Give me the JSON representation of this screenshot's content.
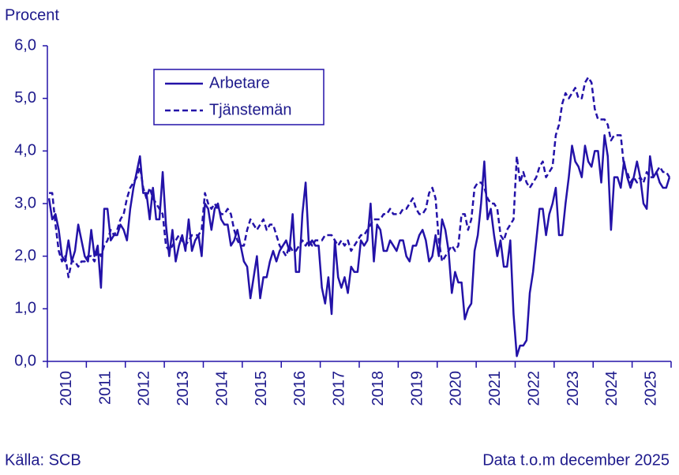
{
  "chart_data": {
    "type": "line",
    "ylabel": "Procent",
    "source": "Källa: SCB",
    "note": "Data t.o.m december 2025",
    "categories": [
      "2010",
      null,
      null,
      null,
      null,
      null,
      null,
      null,
      null,
      null,
      null,
      null,
      "2011",
      null,
      null,
      null,
      null,
      null,
      null,
      null,
      null,
      null,
      null,
      null,
      "2012",
      null,
      null,
      null,
      null,
      null,
      null,
      null,
      null,
      null,
      null,
      null,
      "2013",
      null,
      null,
      null,
      null,
      null,
      null,
      null,
      null,
      null,
      null,
      null,
      "2014",
      null,
      null,
      null,
      null,
      null,
      null,
      null,
      null,
      null,
      null,
      null,
      "2015",
      null,
      null,
      null,
      null,
      null,
      null,
      null,
      null,
      null,
      null,
      null,
      "2016",
      null,
      null,
      null,
      null,
      null,
      null,
      null,
      null,
      null,
      null,
      null,
      "2017",
      null,
      null,
      null,
      null,
      null,
      null,
      null,
      null,
      null,
      null,
      null,
      "2018",
      null,
      null,
      null,
      null,
      null,
      null,
      null,
      null,
      null,
      null,
      null,
      "2019",
      null,
      null,
      null,
      null,
      null,
      null,
      null,
      null,
      null,
      null,
      null,
      "2020",
      null,
      null,
      null,
      null,
      null,
      null,
      null,
      null,
      null,
      null,
      null,
      "2021",
      null,
      null,
      null,
      null,
      null,
      null,
      null,
      null,
      null,
      null,
      null,
      "2022",
      null,
      null,
      null,
      null,
      null,
      null,
      null,
      null,
      null,
      null,
      null,
      "2023",
      null,
      null,
      null,
      null,
      null,
      null,
      null,
      null,
      null,
      null,
      null,
      "2024",
      null,
      null,
      null,
      null,
      null,
      null,
      null,
      null,
      null,
      null,
      null,
      "2025",
      null,
      null,
      null,
      null,
      null,
      null,
      null,
      null,
      null,
      null,
      null
    ],
    "series": [
      {
        "name": "Arbetare",
        "color": "#2312a8",
        "dash": false,
        "values": [
          3.1,
          2.7,
          2.8,
          2.5,
          2.0,
          1.9,
          2.3,
          1.9,
          2.1,
          2.6,
          2.3,
          2.0,
          1.9,
          2.5,
          2.0,
          2.2,
          1.4,
          2.9,
          2.9,
          2.3,
          2.4,
          2.4,
          2.6,
          2.5,
          2.3,
          2.9,
          3.3,
          3.6,
          3.9,
          3.2,
          3.2,
          2.7,
          3.3,
          2.7,
          2.7,
          3.6,
          2.6,
          2.0,
          2.5,
          1.9,
          2.2,
          2.4,
          2.1,
          2.7,
          2.1,
          2.3,
          2.4,
          2.0,
          3.0,
          2.9,
          2.5,
          2.9,
          3.0,
          2.7,
          2.6,
          2.6,
          2.2,
          2.3,
          2.5,
          2.2,
          1.9,
          1.8,
          1.2,
          1.6,
          2.0,
          1.2,
          1.6,
          1.6,
          1.9,
          2.1,
          1.9,
          2.1,
          2.2,
          2.3,
          2.1,
          2.8,
          1.7,
          1.7,
          2.8,
          3.4,
          2.2,
          2.3,
          2.2,
          2.2,
          1.4,
          1.1,
          1.6,
          0.9,
          2.3,
          1.6,
          1.4,
          1.6,
          1.3,
          1.8,
          1.7,
          1.7,
          2.3,
          2.2,
          2.3,
          3.0,
          1.9,
          2.6,
          2.5,
          2.1,
          2.1,
          2.3,
          2.2,
          2.1,
          2.3,
          2.3,
          2.0,
          1.9,
          2.2,
          2.2,
          2.4,
          2.5,
          2.3,
          1.9,
          2.0,
          2.4,
          2.0,
          2.7,
          2.5,
          2.1,
          1.3,
          1.7,
          1.5,
          1.5,
          0.8,
          1.0,
          1.1,
          2.1,
          2.4,
          3.0,
          3.8,
          2.7,
          2.9,
          2.4,
          2.0,
          2.3,
          1.8,
          1.8,
          2.3,
          0.9,
          0.1,
          0.3,
          0.3,
          0.4,
          1.3,
          1.7,
          2.3,
          2.9,
          2.9,
          2.4,
          2.8,
          3.0,
          3.3,
          2.4,
          2.4,
          3.0,
          3.5,
          4.1,
          3.8,
          3.7,
          3.5,
          4.1,
          3.8,
          3.7,
          4.0,
          4.0,
          3.4,
          4.3,
          3.9,
          2.5,
          3.5,
          3.5,
          3.3,
          3.8,
          3.5,
          3.3,
          3.5,
          3.8,
          3.5,
          3.0,
          2.9,
          3.9,
          3.5,
          3.6,
          3.4,
          3.3,
          3.3,
          3.5
        ]
      },
      {
        "name": "Tjänstemän",
        "color": "#2312a8",
        "dash": true,
        "values": [
          3.2,
          3.2,
          2.6,
          2.1,
          1.9,
          2.0,
          1.6,
          1.9,
          1.9,
          1.8,
          1.9,
          1.9,
          2.0,
          2.0,
          1.9,
          2.1,
          2.0,
          2.2,
          2.3,
          2.5,
          2.4,
          2.5,
          2.7,
          2.8,
          3.1,
          3.3,
          3.4,
          3.5,
          3.7,
          3.3,
          3.1,
          3.3,
          3.1,
          3.0,
          2.9,
          2.8,
          2.2,
          2.1,
          2.2,
          2.3,
          2.4,
          2.3,
          2.2,
          2.3,
          2.4,
          2.4,
          2.4,
          2.5,
          3.2,
          3.0,
          2.9,
          3.0,
          2.9,
          2.8,
          2.8,
          2.9,
          2.8,
          2.5,
          2.3,
          2.2,
          2.2,
          2.5,
          2.7,
          2.6,
          2.5,
          2.6,
          2.7,
          2.5,
          2.6,
          2.6,
          2.4,
          2.2,
          2.1,
          2.0,
          2.2,
          2.1,
          2.1,
          2.2,
          2.3,
          2.2,
          2.3,
          2.2,
          2.3,
          2.3,
          2.3,
          2.4,
          2.4,
          2.4,
          2.3,
          2.2,
          2.3,
          2.2,
          2.3,
          2.1,
          2.2,
          2.3,
          2.4,
          2.4,
          2.5,
          2.6,
          2.7,
          2.7,
          2.7,
          2.8,
          2.8,
          2.9,
          2.8,
          2.8,
          2.8,
          2.9,
          2.9,
          3.0,
          3.1,
          2.9,
          2.8,
          2.8,
          2.9,
          3.2,
          3.3,
          3.1,
          2.3,
          1.9,
          2.0,
          2.1,
          2.2,
          2.1,
          2.2,
          2.8,
          2.8,
          2.5,
          2.7,
          3.3,
          3.4,
          3.4,
          3.3,
          3.1,
          3.0,
          3.0,
          2.9,
          2.4,
          2.3,
          2.5,
          2.6,
          2.7,
          3.9,
          3.4,
          3.6,
          3.4,
          3.3,
          3.4,
          3.5,
          3.7,
          3.8,
          3.5,
          3.6,
          3.7,
          4.3,
          4.5,
          4.9,
          5.1,
          5.0,
          5.1,
          5.2,
          5.0,
          5.0,
          5.3,
          5.4,
          5.3,
          4.8,
          4.6,
          4.6,
          4.6,
          4.5,
          4.2,
          4.3,
          4.3,
          4.3,
          3.7,
          3.6,
          3.4,
          3.5,
          3.4,
          3.5,
          3.4,
          3.6,
          3.5,
          3.5,
          3.6,
          3.7,
          3.6,
          3.6,
          3.5
        ]
      }
    ],
    "ylim": [
      0,
      6
    ],
    "yticks": [
      {
        "value": 0,
        "label": "0,0"
      },
      {
        "value": 1,
        "label": "1,0"
      },
      {
        "value": 2,
        "label": "2,0"
      },
      {
        "value": 3,
        "label": "3,0"
      },
      {
        "value": 4,
        "label": "4,0"
      },
      {
        "value": 5,
        "label": "5,0"
      },
      {
        "value": 6,
        "label": "6,0"
      }
    ],
    "grid": false,
    "legend": "upper left"
  }
}
